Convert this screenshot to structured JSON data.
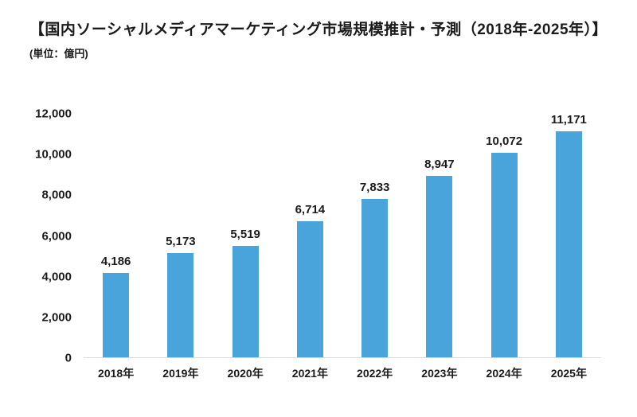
{
  "chart_data": {
    "type": "bar",
    "title": "【国内ソーシャルメディアマーケティング市場規模推計・予測（2018年-2025年）】",
    "unit_label": "(単位：億円)",
    "categories": [
      "2018年",
      "2019年",
      "2020年",
      "2021年",
      "2022年",
      "2023年",
      "2024年",
      "2025年"
    ],
    "values": [
      4186,
      5173,
      5519,
      6714,
      7833,
      8947,
      10072,
      11171
    ],
    "value_labels": [
      "4,186",
      "5,173",
      "5,519",
      "6,714",
      "7,833",
      "8,947",
      "10,072",
      "11,171"
    ],
    "xlabel": "",
    "ylabel": "",
    "ylim": [
      0,
      12000
    ],
    "y_ticks": [
      0,
      2000,
      4000,
      6000,
      8000,
      10000,
      12000
    ],
    "y_tick_labels": [
      "0",
      "2,000",
      "4,000",
      "6,000",
      "8,000",
      "10,000",
      "12,000"
    ],
    "grid": false,
    "legend": false,
    "colors": {
      "bar": "#4aa4dc",
      "axis_line": "#d9d9d9",
      "text": "#1b1b1b"
    }
  }
}
